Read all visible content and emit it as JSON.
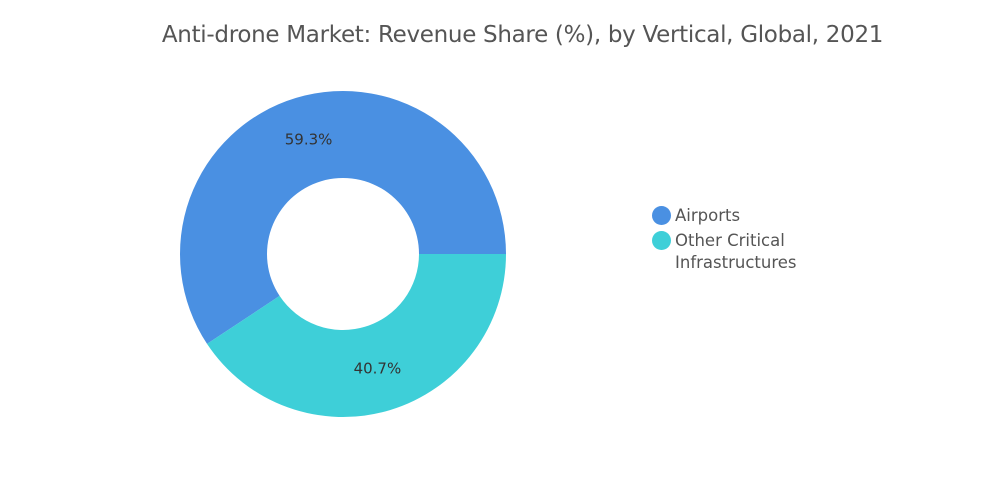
{
  "chart_data": {
    "type": "pie",
    "title": "Anti-drone Market: Revenue Share (%), by Vertical, Global, 2021",
    "donut": true,
    "categories": [
      "Airports",
      "Other Critical Infrastructures"
    ],
    "values": [
      59.3,
      40.7
    ],
    "data_labels": [
      "59.3%",
      "40.7%"
    ],
    "colors": [
      "#4a90e2",
      "#3ecfd8"
    ],
    "legend_position": "right"
  }
}
